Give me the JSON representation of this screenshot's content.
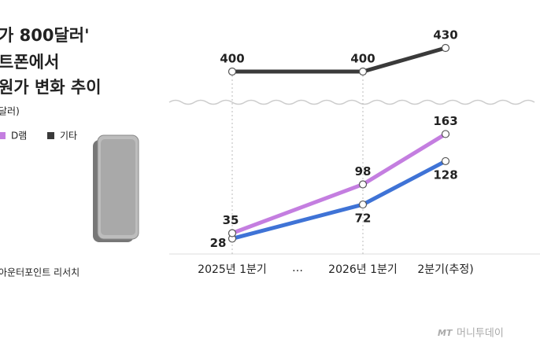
{
  "chart_data": {
    "type": "line",
    "title_lines": [
      "가 800달러'",
      "트폰에서",
      "원가 변화 추이"
    ],
    "unit": "달러)",
    "categories": [
      "2025년 1분기",
      "2026년 1분기",
      "2분기(추정)"
    ],
    "x_gap_label": "…",
    "series": [
      {
        "color": "#3f73d6",
        "values": [
          28,
          72,
          128
        ]
      },
      {
        "name": "D램",
        "color": "#c47ee0",
        "values": [
          35,
          98,
          163
        ]
      },
      {
        "name": "기타",
        "color": "#3a3a3a",
        "values": [
          400,
          400,
          430
        ],
        "axis": "y2"
      }
    ],
    "ylim": [
      0,
      200
    ],
    "y2lim": [
      380,
      450
    ],
    "source": "아운터포인트 리서치",
    "watermark": "머니투데이"
  }
}
